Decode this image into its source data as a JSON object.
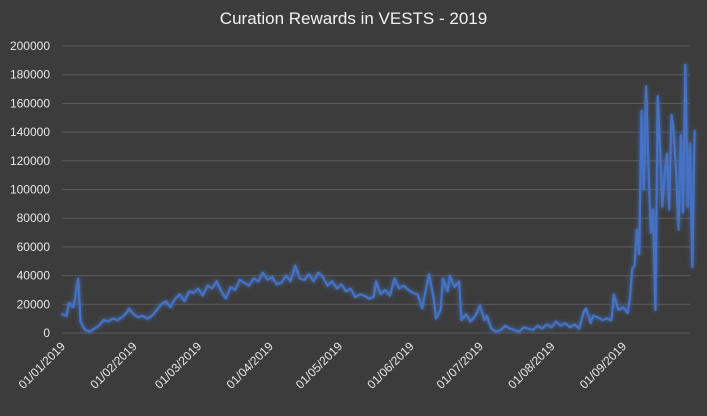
{
  "chart_data": {
    "type": "line",
    "title": "Curation Rewards in VESTS - 2019",
    "xlabel": "",
    "ylabel": "",
    "ylim": [
      0,
      200000
    ],
    "y_ticks": [
      "0",
      "20000",
      "40000",
      "60000",
      "80000",
      "100000",
      "120000",
      "140000",
      "160000",
      "180000",
      "200000"
    ],
    "x_range": [
      "2019-01-01",
      "2019-09-30"
    ],
    "x_ticks": [
      {
        "date": "2019-01-01",
        "label": "01/01/2019"
      },
      {
        "date": "2019-02-01",
        "label": "01/02/2019"
      },
      {
        "date": "2019-03-01",
        "label": "01/03/2019"
      },
      {
        "date": "2019-04-01",
        "label": "01/04/2019"
      },
      {
        "date": "2019-05-01",
        "label": "01/05/2019"
      },
      {
        "date": "2019-06-01",
        "label": "01/06/2019"
      },
      {
        "date": "2019-07-01",
        "label": "01/07/2019"
      },
      {
        "date": "2019-08-01",
        "label": "01/08/2019"
      },
      {
        "date": "2019-09-01",
        "label": "01/09/2019"
      }
    ],
    "grid": "horizontal",
    "series": [
      {
        "color": "#4472c4",
        "points": [
          [
            "2019-01-01",
            13000
          ],
          [
            "2019-01-03",
            12000
          ],
          [
            "2019-01-04",
            21000
          ],
          [
            "2019-01-06",
            18000
          ],
          [
            "2019-01-08",
            38000
          ],
          [
            "2019-01-09",
            8000
          ],
          [
            "2019-01-11",
            2000
          ],
          [
            "2019-01-13",
            1000
          ],
          [
            "2019-01-15",
            3000
          ],
          [
            "2019-01-17",
            5000
          ],
          [
            "2019-01-19",
            9000
          ],
          [
            "2019-01-21",
            8000
          ],
          [
            "2019-01-23",
            10000
          ],
          [
            "2019-01-25",
            9000
          ],
          [
            "2019-01-27",
            11000
          ],
          [
            "2019-01-29",
            14000
          ],
          [
            "2019-01-30",
            17000
          ],
          [
            "2019-02-01",
            13000
          ],
          [
            "2019-02-03",
            11000
          ],
          [
            "2019-02-05",
            12000
          ],
          [
            "2019-02-07",
            10000
          ],
          [
            "2019-02-09",
            12000
          ],
          [
            "2019-02-11",
            16000
          ],
          [
            "2019-02-13",
            20000
          ],
          [
            "2019-02-15",
            22000
          ],
          [
            "2019-02-17",
            18000
          ],
          [
            "2019-02-19",
            24000
          ],
          [
            "2019-02-21",
            27000
          ],
          [
            "2019-02-23",
            22000
          ],
          [
            "2019-02-25",
            29000
          ],
          [
            "2019-02-27",
            28000
          ],
          [
            "2019-03-01",
            31000
          ],
          [
            "2019-03-03",
            26000
          ],
          [
            "2019-03-05",
            33000
          ],
          [
            "2019-03-07",
            31000
          ],
          [
            "2019-03-09",
            36000
          ],
          [
            "2019-03-11",
            29000
          ],
          [
            "2019-03-13",
            24000
          ],
          [
            "2019-03-15",
            32000
          ],
          [
            "2019-03-17",
            30000
          ],
          [
            "2019-03-19",
            37000
          ],
          [
            "2019-03-21",
            35000
          ],
          [
            "2019-03-23",
            33000
          ],
          [
            "2019-03-25",
            38000
          ],
          [
            "2019-03-27",
            36000
          ],
          [
            "2019-03-29",
            42000
          ],
          [
            "2019-03-31",
            37000
          ],
          [
            "2019-04-02",
            39000
          ],
          [
            "2019-04-04",
            34000
          ],
          [
            "2019-04-06",
            35000
          ],
          [
            "2019-04-08",
            40000
          ],
          [
            "2019-04-10",
            36000
          ],
          [
            "2019-04-12",
            47000
          ],
          [
            "2019-04-14",
            38000
          ],
          [
            "2019-04-16",
            37000
          ],
          [
            "2019-04-18",
            41000
          ],
          [
            "2019-04-20",
            36000
          ],
          [
            "2019-04-22",
            42000
          ],
          [
            "2019-04-24",
            39000
          ],
          [
            "2019-04-26",
            33000
          ],
          [
            "2019-04-28",
            36000
          ],
          [
            "2019-04-30",
            31000
          ],
          [
            "2019-05-02",
            34000
          ],
          [
            "2019-05-04",
            29000
          ],
          [
            "2019-05-06",
            31000
          ],
          [
            "2019-05-08",
            25000
          ],
          [
            "2019-05-10",
            27000
          ],
          [
            "2019-05-12",
            26000
          ],
          [
            "2019-05-14",
            24000
          ],
          [
            "2019-05-16",
            25000
          ],
          [
            "2019-05-17",
            36000
          ],
          [
            "2019-05-19",
            27000
          ],
          [
            "2019-05-21",
            30000
          ],
          [
            "2019-05-23",
            26000
          ],
          [
            "2019-05-25",
            38000
          ],
          [
            "2019-05-27",
            31000
          ],
          [
            "2019-05-29",
            33000
          ],
          [
            "2019-05-31",
            30000
          ],
          [
            "2019-06-02",
            28000
          ],
          [
            "2019-06-04",
            27000
          ],
          [
            "2019-06-06",
            17000
          ],
          [
            "2019-06-08",
            34000
          ],
          [
            "2019-06-09",
            41000
          ],
          [
            "2019-06-11",
            24000
          ],
          [
            "2019-06-12",
            10000
          ],
          [
            "2019-06-14",
            16000
          ],
          [
            "2019-06-15",
            38000
          ],
          [
            "2019-06-17",
            29000
          ],
          [
            "2019-06-18",
            40000
          ],
          [
            "2019-06-20",
            32000
          ],
          [
            "2019-06-22",
            36000
          ],
          [
            "2019-06-23",
            9000
          ],
          [
            "2019-06-25",
            13000
          ],
          [
            "2019-06-27",
            8000
          ],
          [
            "2019-06-29",
            12000
          ],
          [
            "2019-07-01",
            19000
          ],
          [
            "2019-07-03",
            9000
          ],
          [
            "2019-07-04",
            12000
          ],
          [
            "2019-07-06",
            3000
          ],
          [
            "2019-07-08",
            1000
          ],
          [
            "2019-07-10",
            2000
          ],
          [
            "2019-07-12",
            5000
          ],
          [
            "2019-07-14",
            3000
          ],
          [
            "2019-07-16",
            2000
          ],
          [
            "2019-07-18",
            1000
          ],
          [
            "2019-07-20",
            4000
          ],
          [
            "2019-07-22",
            3000
          ],
          [
            "2019-07-24",
            2000
          ],
          [
            "2019-07-26",
            5000
          ],
          [
            "2019-07-28",
            3000
          ],
          [
            "2019-07-30",
            6000
          ],
          [
            "2019-08-01",
            4000
          ],
          [
            "2019-08-03",
            8000
          ],
          [
            "2019-08-05",
            5000
          ],
          [
            "2019-08-07",
            7000
          ],
          [
            "2019-08-09",
            4000
          ],
          [
            "2019-08-11",
            6000
          ],
          [
            "2019-08-13",
            3000
          ],
          [
            "2019-08-15",
            15000
          ],
          [
            "2019-08-16",
            17000
          ],
          [
            "2019-08-18",
            7000
          ],
          [
            "2019-08-19",
            12000
          ],
          [
            "2019-08-21",
            11000
          ],
          [
            "2019-08-23",
            9000
          ],
          [
            "2019-08-25",
            10000
          ],
          [
            "2019-08-27",
            9000
          ],
          [
            "2019-08-28",
            27000
          ],
          [
            "2019-08-30",
            16000
          ],
          [
            "2019-09-01",
            18000
          ],
          [
            "2019-09-03",
            14000
          ],
          [
            "2019-09-04",
            25000
          ],
          [
            "2019-09-05",
            45000
          ],
          [
            "2019-09-06",
            47000
          ],
          [
            "2019-09-07",
            72000
          ],
          [
            "2019-09-08",
            55000
          ],
          [
            "2019-09-09",
            155000
          ],
          [
            "2019-09-10",
            100000
          ],
          [
            "2019-09-11",
            172000
          ],
          [
            "2019-09-12",
            118000
          ],
          [
            "2019-09-13",
            70000
          ],
          [
            "2019-09-14",
            86000
          ],
          [
            "2019-09-15",
            16000
          ],
          [
            "2019-09-16",
            165000
          ],
          [
            "2019-09-17",
            130000
          ],
          [
            "2019-09-18",
            88000
          ],
          [
            "2019-09-19",
            110000
          ],
          [
            "2019-09-20",
            125000
          ],
          [
            "2019-09-21",
            86000
          ],
          [
            "2019-09-22",
            152000
          ],
          [
            "2019-09-23",
            140000
          ],
          [
            "2019-09-24",
            112000
          ],
          [
            "2019-09-25",
            72000
          ],
          [
            "2019-09-26",
            138000
          ],
          [
            "2019-09-27",
            84000
          ],
          [
            "2019-09-28",
            187000
          ],
          [
            "2019-09-29",
            88000
          ],
          [
            "2019-09-30",
            132000
          ],
          [
            "2019-10-01",
            46000
          ],
          [
            "2019-10-02",
            141000
          ]
        ]
      }
    ]
  }
}
